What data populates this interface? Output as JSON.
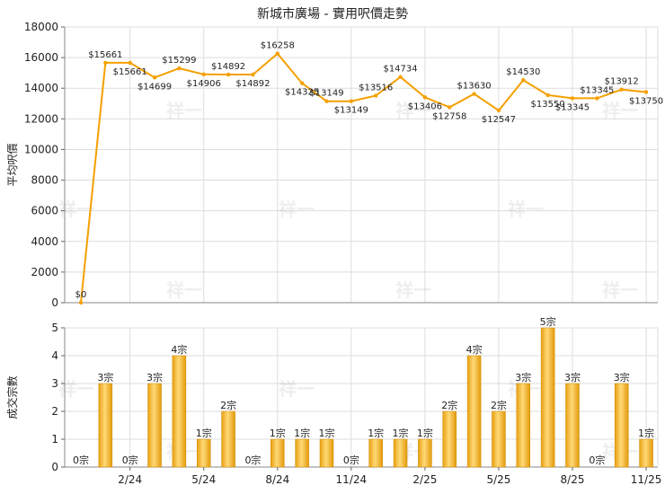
{
  "chart_data": [
    {
      "type": "line",
      "title": "新城市廣場 - 實用呎價走勢",
      "ylabel": "平均呎價",
      "ylim": [
        0,
        18000
      ],
      "yticks": [
        "0",
        "2000",
        "4000",
        "6000",
        "8000",
        "10000",
        "12000",
        "14000",
        "16000",
        "18000"
      ],
      "yticks_values": [
        0,
        2000,
        4000,
        6000,
        8000,
        10000,
        12000,
        14000,
        16000,
        18000
      ],
      "x_labels": [
        "2/24",
        "5/24",
        "8/24",
        "11/24",
        "2/25",
        "5/25",
        "8/25",
        "11/25"
      ],
      "x_label_index": [
        2,
        5,
        8,
        11,
        14,
        17,
        20,
        23
      ],
      "values": [
        0,
        15661,
        15661,
        14699,
        15299,
        14906,
        14892,
        14892,
        16258,
        14325,
        13149,
        13149,
        13516,
        14734,
        13406,
        12758,
        13630,
        12547,
        14530,
        13550,
        13345,
        13345,
        13912,
        13750
      ],
      "point_labels": [
        "$0",
        "$15661",
        "$15661",
        "$14699",
        "$15299",
        "$14906",
        "$14892",
        "$14892",
        "$16258",
        "$14325",
        "$13149",
        "$13149",
        "$13516",
        "$14734",
        "$13406",
        "$12758",
        "$13630",
        "$12547",
        "$14530",
        "$13550",
        "$13345",
        "$13345",
        "$13912",
        "$13750"
      ],
      "label_side": [
        "above",
        "above",
        "below",
        "below",
        "above",
        "below",
        "above",
        "below",
        "above",
        "below",
        "above",
        "below",
        "above",
        "above",
        "below",
        "below",
        "above",
        "below",
        "above",
        "below",
        "below",
        "above",
        "above",
        "below"
      ],
      "color": "#f5a000",
      "grid": true
    },
    {
      "type": "bar",
      "ylabel": "成交宗數",
      "ylim": [
        0,
        5
      ],
      "yticks": [
        "0",
        "1",
        "2",
        "3",
        "4",
        "5"
      ],
      "yticks_values": [
        0,
        1,
        2,
        3,
        4,
        5
      ],
      "values": [
        0,
        3,
        0,
        3,
        4,
        1,
        2,
        0,
        1,
        1,
        1,
        0,
        1,
        1,
        1,
        2,
        4,
        2,
        3,
        5,
        3,
        0,
        3,
        1
      ],
      "bar_labels": [
        "0宗",
        "3宗",
        "0宗",
        "3宗",
        "4宗",
        "1宗",
        "2宗",
        "0宗",
        "1宗",
        "1宗",
        "1宗",
        "0宗",
        "1宗",
        "1宗",
        "1宗",
        "2宗",
        "4宗",
        "2宗",
        "3宗",
        "5宗",
        "3宗",
        "0宗",
        "3宗",
        "1宗"
      ],
      "color": "#f2b01e",
      "grid": true
    }
  ],
  "watermark": "祥一"
}
